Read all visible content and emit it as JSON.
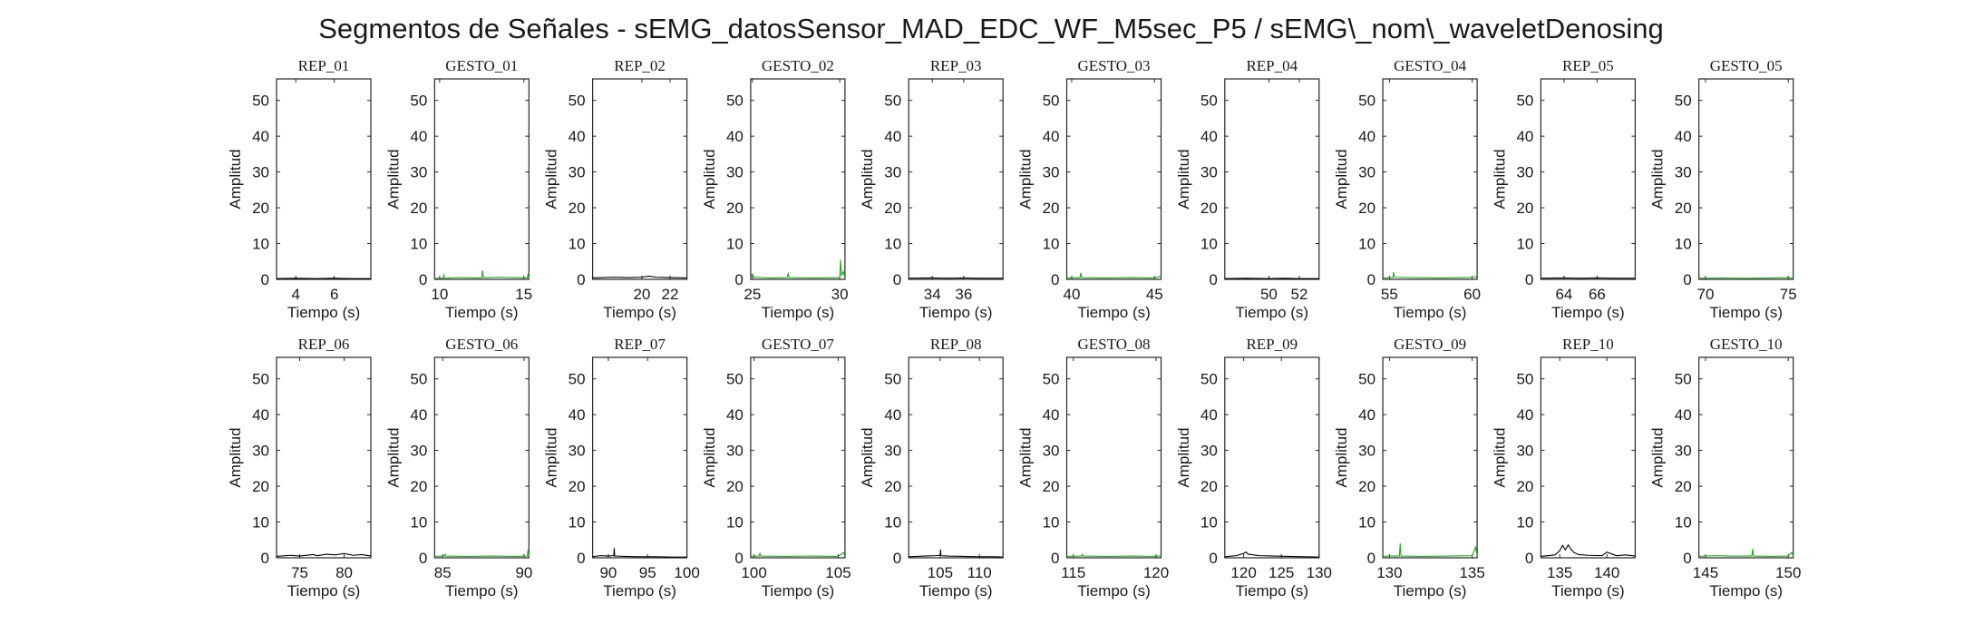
{
  "figure": {
    "title": "Segmentos de Señales - sEMG_datosSensor_MAD_EDC_WF_M5sec_P5 / sEMG\\_nom\\_waveletDenosing"
  },
  "colors": {
    "rep": "#000000",
    "gesto": "#2ca02c",
    "axes": "#262626"
  },
  "chart_data": [
    {
      "type": "line",
      "title": "REP_01",
      "xlabel": "Tiempo (s)",
      "ylabel": "Amplitud",
      "xlim": [
        3.0,
        7.9
      ],
      "ylim": [
        0,
        56
      ],
      "xticks": [
        4,
        6
      ],
      "yticks": [
        0,
        10,
        20,
        30,
        40,
        50
      ],
      "series": [
        {
          "color": "black",
          "x": [
            3.0,
            4.0,
            5.0,
            6.0,
            7.0,
            7.9
          ],
          "y": [
            0.2,
            0.3,
            0.2,
            0.3,
            0.2,
            0.2
          ]
        }
      ]
    },
    {
      "type": "line",
      "title": "GESTO_01",
      "xlabel": "Tiempo (s)",
      "ylabel": "Amplitud",
      "xlim": [
        9.7,
        15.3
      ],
      "ylim": [
        0,
        56
      ],
      "xticks": [
        10,
        15
      ],
      "yticks": [
        0,
        10,
        20,
        30,
        40,
        50
      ],
      "series": [
        {
          "color": "green",
          "x": [
            9.7,
            10.2,
            10.25,
            10.3,
            11.0,
            12.5,
            12.55,
            12.6,
            13.5,
            14.5,
            15.2,
            15.25,
            15.3
          ],
          "y": [
            0.3,
            0.3,
            1.2,
            0.3,
            0.5,
            0.4,
            2.5,
            0.5,
            0.6,
            0.5,
            0.4,
            1.5,
            0.4
          ]
        }
      ]
    },
    {
      "type": "line",
      "title": "REP_02",
      "xlabel": "Tiempo (s)",
      "ylabel": "Amplitud",
      "xlim": [
        16.5,
        23.2
      ],
      "ylim": [
        0,
        56
      ],
      "xticks": [
        20,
        22
      ],
      "yticks": [
        0,
        10,
        20,
        30,
        40,
        50
      ],
      "series": [
        {
          "color": "black",
          "x": [
            16.5,
            18.0,
            19.0,
            20.0,
            20.5,
            21.0,
            22.0,
            23.2
          ],
          "y": [
            0.4,
            0.6,
            0.5,
            0.6,
            0.9,
            0.6,
            0.5,
            0.4
          ]
        }
      ]
    },
    {
      "type": "line",
      "title": "GESTO_02",
      "xlabel": "Tiempo (s)",
      "ylabel": "Amplitud",
      "xlim": [
        24.9,
        30.3
      ],
      "ylim": [
        0,
        56
      ],
      "xticks": [
        25,
        30
      ],
      "yticks": [
        0,
        10,
        20,
        30,
        40,
        50
      ],
      "series": [
        {
          "color": "green",
          "x": [
            24.9,
            25.0,
            25.1,
            25.2,
            26.0,
            27.0,
            27.05,
            27.1,
            28.5,
            30.0,
            30.05,
            30.1,
            30.2,
            30.3
          ],
          "y": [
            0.5,
            1.5,
            0.5,
            0.6,
            0.4,
            0.5,
            1.8,
            0.5,
            0.4,
            0.5,
            5.5,
            1.0,
            2.2,
            0.5
          ]
        }
      ]
    },
    {
      "type": "line",
      "title": "REP_03",
      "xlabel": "Tiempo (s)",
      "ylabel": "Amplitud",
      "xlim": [
        32.5,
        38.5
      ],
      "ylim": [
        0,
        56
      ],
      "xticks": [
        34,
        36
      ],
      "yticks": [
        0,
        10,
        20,
        30,
        40,
        50
      ],
      "series": [
        {
          "color": "black",
          "x": [
            32.5,
            34.0,
            35.0,
            36.0,
            37.0,
            38.5
          ],
          "y": [
            0.3,
            0.4,
            0.3,
            0.4,
            0.3,
            0.3
          ]
        }
      ]
    },
    {
      "type": "line",
      "title": "GESTO_03",
      "xlabel": "Tiempo (s)",
      "ylabel": "Amplitud",
      "xlim": [
        39.7,
        45.4
      ],
      "ylim": [
        0,
        56
      ],
      "xticks": [
        40,
        45
      ],
      "yticks": [
        0,
        10,
        20,
        30,
        40,
        50
      ],
      "series": [
        {
          "color": "green",
          "x": [
            39.7,
            40.5,
            40.55,
            40.6,
            42.0,
            43.5,
            45.0,
            45.4
          ],
          "y": [
            0.4,
            0.5,
            1.8,
            0.5,
            0.4,
            0.5,
            0.4,
            0.9
          ]
        }
      ]
    },
    {
      "type": "line",
      "title": "REP_04",
      "xlabel": "Tiempo (s)",
      "ylabel": "Amplitud",
      "xlim": [
        47.1,
        53.3
      ],
      "ylim": [
        0,
        56
      ],
      "xticks": [
        50,
        52
      ],
      "yticks": [
        0,
        10,
        20,
        30,
        40,
        50
      ],
      "series": [
        {
          "color": "black",
          "x": [
            47.1,
            48.5,
            50.0,
            51.0,
            52.0,
            53.3
          ],
          "y": [
            0.2,
            0.3,
            0.2,
            0.3,
            0.2,
            0.2
          ]
        }
      ]
    },
    {
      "type": "line",
      "title": "GESTO_04",
      "xlabel": "Tiempo (s)",
      "ylabel": "Amplitud",
      "xlim": [
        54.6,
        60.3
      ],
      "ylim": [
        0,
        56
      ],
      "xticks": [
        55,
        60
      ],
      "yticks": [
        0,
        10,
        20,
        30,
        40,
        50
      ],
      "series": [
        {
          "color": "green",
          "x": [
            54.6,
            55.2,
            55.25,
            55.3,
            56.5,
            58.0,
            59.5,
            60.2,
            60.3
          ],
          "y": [
            0.4,
            0.5,
            2.0,
            0.6,
            0.5,
            0.4,
            0.5,
            0.6,
            1.2
          ]
        }
      ]
    },
    {
      "type": "line",
      "title": "REP_05",
      "xlabel": "Tiempo (s)",
      "ylabel": "Amplitud",
      "xlim": [
        62.6,
        68.3
      ],
      "ylim": [
        0,
        56
      ],
      "xticks": [
        64,
        66
      ],
      "yticks": [
        0,
        10,
        20,
        30,
        40,
        50
      ],
      "series": [
        {
          "color": "black",
          "x": [
            62.6,
            64.0,
            65.0,
            66.0,
            67.0,
            68.3
          ],
          "y": [
            0.3,
            0.4,
            0.3,
            0.4,
            0.3,
            0.3
          ]
        }
      ]
    },
    {
      "type": "line",
      "title": "GESTO_05",
      "xlabel": "Tiempo (s)",
      "ylabel": "Amplitud",
      "xlim": [
        69.6,
        75.3
      ],
      "ylim": [
        0,
        56
      ],
      "xticks": [
        70,
        75
      ],
      "yticks": [
        0,
        10,
        20,
        30,
        40,
        50
      ],
      "series": [
        {
          "color": "green",
          "x": [
            69.6,
            71.0,
            72.5,
            74.0,
            75.0,
            75.3
          ],
          "y": [
            0.3,
            0.4,
            0.3,
            0.4,
            0.5,
            0.3
          ]
        }
      ]
    },
    {
      "type": "line",
      "title": "REP_06",
      "xlabel": "Tiempo (s)",
      "ylabel": "Amplitud",
      "xlim": [
        72.4,
        83.0
      ],
      "ylim": [
        0,
        56
      ],
      "xticks": [
        75,
        80
      ],
      "yticks": [
        0,
        10,
        20,
        30,
        40,
        50
      ],
      "series": [
        {
          "color": "black",
          "x": [
            72.4,
            74.0,
            75.0,
            76.5,
            77.0,
            78.0,
            79.0,
            80.0,
            81.0,
            82.0,
            83.0
          ],
          "y": [
            0.4,
            0.7,
            0.5,
            0.9,
            0.6,
            1.0,
            0.8,
            1.2,
            0.7,
            0.9,
            0.5
          ]
        }
      ]
    },
    {
      "type": "line",
      "title": "GESTO_06",
      "xlabel": "Tiempo (s)",
      "ylabel": "Amplitud",
      "xlim": [
        84.5,
        90.3
      ],
      "ylim": [
        0,
        56
      ],
      "xticks": [
        85,
        90
      ],
      "yticks": [
        0,
        10,
        20,
        30,
        40,
        50
      ],
      "series": [
        {
          "color": "green",
          "x": [
            84.5,
            85.1,
            85.15,
            85.2,
            86.5,
            88.0,
            89.5,
            90.2,
            90.25,
            90.3
          ],
          "y": [
            0.4,
            0.5,
            1.0,
            0.5,
            0.4,
            0.5,
            0.4,
            0.5,
            2.2,
            0.5
          ]
        }
      ]
    },
    {
      "type": "line",
      "title": "REP_07",
      "xlabel": "Tiempo (s)",
      "ylabel": "Amplitud",
      "xlim": [
        88.0,
        100.0
      ],
      "ylim": [
        0,
        56
      ],
      "xticks": [
        90,
        95,
        100
      ],
      "yticks": [
        0,
        10,
        20,
        30,
        40,
        50
      ],
      "series": [
        {
          "color": "black",
          "x": [
            88.0,
            89.0,
            90.0,
            90.7,
            90.75,
            90.8,
            92.0,
            94.0,
            96.0,
            98.0,
            100.0
          ],
          "y": [
            0.3,
            0.6,
            0.5,
            0.6,
            2.7,
            0.5,
            0.4,
            0.3,
            0.3,
            0.2,
            0.2
          ]
        }
      ]
    },
    {
      "type": "line",
      "title": "GESTO_07",
      "xlabel": "Tiempo (s)",
      "ylabel": "Amplitud",
      "xlim": [
        99.8,
        105.4
      ],
      "ylim": [
        0,
        56
      ],
      "xticks": [
        100,
        105
      ],
      "yticks": [
        0,
        10,
        20,
        30,
        40,
        50
      ],
      "series": [
        {
          "color": "green",
          "x": [
            99.8,
            100.3,
            100.35,
            100.4,
            102.0,
            103.5,
            105.0,
            105.3,
            105.4
          ],
          "y": [
            0.4,
            0.5,
            1.2,
            0.5,
            0.4,
            0.5,
            0.4,
            1.5,
            0.5
          ]
        }
      ]
    },
    {
      "type": "line",
      "title": "REP_08",
      "xlabel": "Tiempo (s)",
      "ylabel": "Amplitud",
      "xlim": [
        101.0,
        113.0
      ],
      "ylim": [
        0,
        56
      ],
      "xticks": [
        105,
        110
      ],
      "yticks": [
        0,
        10,
        20,
        30,
        40,
        50
      ],
      "series": [
        {
          "color": "black",
          "x": [
            101.0,
            103.0,
            104.5,
            105.0,
            105.05,
            105.1,
            106.0,
            108.0,
            110.0,
            112.0,
            113.0
          ],
          "y": [
            0.3,
            0.5,
            0.6,
            0.7,
            2.3,
            0.6,
            0.5,
            0.4,
            0.3,
            0.3,
            0.2
          ]
        }
      ]
    },
    {
      "type": "line",
      "title": "GESTO_08",
      "xlabel": "Tiempo (s)",
      "ylabel": "Amplitud",
      "xlim": [
        114.6,
        120.3
      ],
      "ylim": [
        0,
        56
      ],
      "xticks": [
        115,
        120
      ],
      "yticks": [
        0,
        10,
        20,
        30,
        40,
        50
      ],
      "series": [
        {
          "color": "green",
          "x": [
            114.6,
            115.5,
            115.55,
            115.6,
            117.0,
            118.5,
            120.0,
            120.3
          ],
          "y": [
            0.4,
            0.5,
            1.0,
            0.5,
            0.4,
            0.5,
            0.4,
            0.6
          ]
        }
      ]
    },
    {
      "type": "line",
      "title": "REP_09",
      "xlabel": "Tiempo (s)",
      "ylabel": "Amplitud",
      "xlim": [
        117.5,
        130.0
      ],
      "ylim": [
        0,
        56
      ],
      "xticks": [
        120,
        125,
        130
      ],
      "yticks": [
        0,
        10,
        20,
        30,
        40,
        50
      ],
      "series": [
        {
          "color": "black",
          "x": [
            117.5,
            119.0,
            120.0,
            120.3,
            120.6,
            121.0,
            122.0,
            124.0,
            126.0,
            128.0,
            130.0
          ],
          "y": [
            0.3,
            0.6,
            1.2,
            1.6,
            1.0,
            0.9,
            0.6,
            0.5,
            0.4,
            0.3,
            0.2
          ]
        }
      ]
    },
    {
      "type": "line",
      "title": "GESTO_09",
      "xlabel": "Tiempo (s)",
      "ylabel": "Amplitud",
      "xlim": [
        129.6,
        135.3
      ],
      "ylim": [
        0,
        56
      ],
      "xticks": [
        130,
        135
      ],
      "yticks": [
        0,
        10,
        20,
        30,
        40,
        50
      ],
      "series": [
        {
          "color": "green",
          "x": [
            129.6,
            130.0,
            130.6,
            130.65,
            130.7,
            132.0,
            133.5,
            135.0,
            135.2,
            135.3
          ],
          "y": [
            0.4,
            0.5,
            0.5,
            4.0,
            0.5,
            0.4,
            0.5,
            0.6,
            3.0,
            0.6
          ]
        }
      ]
    },
    {
      "type": "line",
      "title": "REP_10",
      "xlabel": "Tiempo (s)",
      "ylabel": "Amplitud",
      "xlim": [
        133.0,
        143.0
      ],
      "ylim": [
        0,
        56
      ],
      "xticks": [
        135,
        140
      ],
      "yticks": [
        0,
        10,
        20,
        30,
        40,
        50
      ],
      "series": [
        {
          "color": "black",
          "x": [
            133.0,
            134.5,
            135.0,
            135.3,
            135.6,
            135.9,
            136.2,
            136.5,
            137.0,
            138.0,
            139.5,
            140.0,
            141.0,
            142.0,
            143.0
          ],
          "y": [
            0.4,
            0.8,
            2.0,
            3.5,
            2.2,
            3.6,
            2.4,
            1.5,
            0.9,
            0.7,
            0.6,
            1.6,
            0.6,
            0.8,
            0.5
          ]
        }
      ]
    },
    {
      "type": "line",
      "title": "GESTO_10",
      "xlabel": "Tiempo (s)",
      "ylabel": "Amplitud",
      "xlim": [
        144.6,
        150.3
      ],
      "ylim": [
        0,
        56
      ],
      "xticks": [
        145,
        150
      ],
      "yticks": [
        0,
        10,
        20,
        30,
        40,
        50
      ],
      "series": [
        {
          "color": "green",
          "x": [
            144.6,
            145.5,
            146.5,
            147.8,
            147.85,
            147.9,
            149.0,
            150.0,
            150.2,
            150.3
          ],
          "y": [
            0.4,
            0.6,
            0.5,
            0.5,
            2.5,
            0.5,
            0.4,
            0.5,
            1.5,
            0.5
          ]
        }
      ]
    }
  ]
}
